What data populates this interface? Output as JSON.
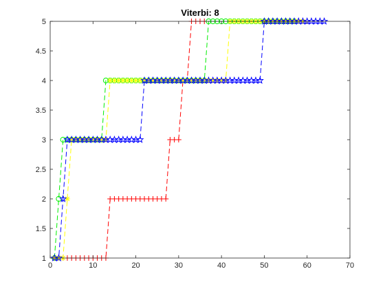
{
  "chart_data": {
    "type": "line",
    "title": "Viterbi: 8",
    "xlabel": "",
    "ylabel": "",
    "xlim": [
      0,
      70
    ],
    "ylim": [
      1,
      5
    ],
    "x_ticks": [
      0,
      10,
      20,
      30,
      40,
      50,
      60,
      70
    ],
    "y_ticks": [
      1,
      1.5,
      2,
      2.5,
      3,
      3.5,
      4,
      4.5,
      5
    ],
    "grid": false,
    "legend": "none",
    "line_style": "dashed",
    "series": [
      {
        "color": "#ff0000",
        "marker": "plus",
        "x": [
          1,
          2,
          3,
          4,
          5,
          6,
          7,
          8,
          9,
          10,
          11,
          12,
          13,
          14,
          15,
          16,
          17,
          18,
          19,
          20,
          21,
          22,
          23,
          24,
          25,
          26,
          27,
          28,
          29,
          30,
          31,
          32,
          33,
          34,
          35,
          36
        ],
        "y": [
          1,
          1,
          1,
          1,
          1,
          1,
          1,
          1,
          1,
          1,
          1,
          1,
          1,
          2,
          2,
          2,
          2,
          2,
          2,
          2,
          2,
          2,
          2,
          2,
          2,
          2,
          2,
          3,
          3,
          3,
          4,
          4,
          5,
          5,
          5,
          5
        ]
      },
      {
        "color": "#00ee00",
        "marker": "circle",
        "x": [
          1,
          2,
          3,
          4,
          5,
          6,
          7,
          8,
          9,
          10,
          11,
          12,
          13,
          14,
          15,
          16,
          17,
          18,
          19,
          20,
          21,
          22,
          23,
          24,
          25,
          26,
          27,
          28,
          29,
          30,
          31,
          32,
          33,
          34,
          35,
          36,
          37,
          38,
          39,
          40,
          41,
          42,
          43,
          44,
          45,
          46,
          47,
          48,
          49,
          50,
          51,
          52,
          53,
          54,
          55,
          56,
          57
        ],
        "y": [
          1,
          2,
          3,
          3,
          3,
          3,
          3,
          3,
          3,
          3,
          3,
          3,
          4,
          4,
          4,
          4,
          4,
          4,
          4,
          4,
          4,
          4,
          4,
          4,
          4,
          4,
          4,
          4,
          4,
          4,
          4,
          4,
          4,
          4,
          4,
          4,
          5,
          5,
          5,
          5,
          5,
          5,
          5,
          5,
          5,
          5,
          5,
          5,
          5,
          5,
          5,
          5,
          5,
          5,
          5,
          5,
          5
        ]
      },
      {
        "color": "#ffff00",
        "marker": "star",
        "x": [
          1,
          2,
          3,
          4,
          5,
          6,
          7,
          8,
          9,
          10,
          11,
          12,
          13,
          14,
          15,
          16,
          17,
          18,
          19,
          20,
          21,
          22,
          23,
          24,
          25,
          26,
          27,
          28,
          29,
          30,
          31,
          32,
          33,
          34,
          35,
          36,
          37,
          38,
          39,
          40,
          41,
          42,
          43,
          44,
          45,
          46,
          47,
          48,
          49,
          50,
          51,
          52,
          53,
          54,
          55,
          56,
          57,
          58,
          59
        ],
        "y": [
          1,
          1,
          1,
          2,
          3,
          3,
          3,
          3,
          3,
          3,
          3,
          3,
          3,
          4,
          4,
          4,
          4,
          4,
          4,
          4,
          4,
          4,
          4,
          4,
          4,
          4,
          4,
          4,
          4,
          4,
          4,
          4,
          4,
          4,
          4,
          4,
          4,
          4,
          4,
          4,
          4,
          5,
          5,
          5,
          5,
          5,
          5,
          5,
          5,
          5,
          5,
          5,
          5,
          5,
          5,
          5,
          5,
          5,
          5
        ]
      },
      {
        "color": "#0000ff",
        "marker": "pentagram",
        "x": [
          1,
          2,
          3,
          4,
          5,
          6,
          7,
          8,
          9,
          10,
          11,
          12,
          13,
          14,
          15,
          16,
          17,
          18,
          19,
          20,
          21,
          22,
          23,
          24,
          25,
          26,
          27,
          28,
          29,
          30,
          31,
          32,
          33,
          34,
          35,
          36,
          37,
          38,
          39,
          40,
          41,
          42,
          43,
          44,
          45,
          46,
          47,
          48,
          49,
          50,
          51,
          52,
          53,
          54,
          55,
          56,
          57,
          58,
          59,
          60,
          61,
          62,
          63,
          64
        ],
        "y": [
          1,
          1,
          2,
          3,
          3,
          3,
          3,
          3,
          3,
          3,
          3,
          3,
          3,
          3,
          3,
          3,
          3,
          3,
          3,
          3,
          3,
          4,
          4,
          4,
          4,
          4,
          4,
          4,
          4,
          4,
          4,
          4,
          4,
          4,
          4,
          4,
          4,
          4,
          4,
          4,
          4,
          4,
          4,
          4,
          4,
          4,
          4,
          4,
          4,
          5,
          5,
          5,
          5,
          5,
          5,
          5,
          5,
          5,
          5,
          5,
          5,
          5,
          5,
          5
        ]
      }
    ]
  }
}
